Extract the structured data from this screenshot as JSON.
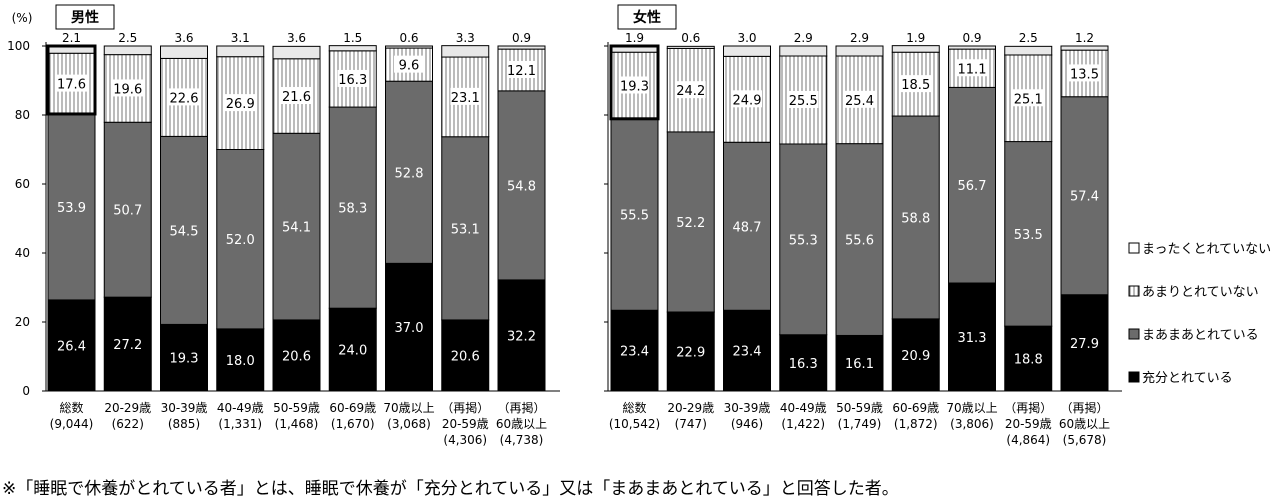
{
  "chart_data": [
    {
      "type": "bar",
      "stacked": true,
      "title": "男性",
      "ylabel": "(%)",
      "ylim": [
        0,
        100
      ],
      "yticks": [
        "0",
        "20",
        "40",
        "60",
        "80",
        "100"
      ],
      "categories": [
        "総数",
        "20-29歳",
        "30-39歳",
        "40-49歳",
        "50-59歳",
        "60-69歳",
        "70歳以上",
        "（再掲）20-59歳",
        "（再掲）60歳以上"
      ],
      "sample_sizes": [
        "(9,044)",
        "(622)",
        "(885)",
        "(1,331)",
        "(1,468)",
        "(1,670)",
        "(3,068)",
        "(4,306)",
        "(4,738)"
      ],
      "series": [
        {
          "name": "充分とれている",
          "values": [
            26.4,
            27.2,
            19.3,
            18.0,
            20.6,
            24.0,
            37.0,
            20.6,
            32.2
          ],
          "labels": [
            "26.4",
            "27.2",
            "19.3",
            "18.0",
            "20.6",
            "24.0",
            "37.0",
            "20.6",
            "32.2"
          ]
        },
        {
          "name": "まあまあとれている",
          "values": [
            53.9,
            50.7,
            54.5,
            52.0,
            54.1,
            58.3,
            52.8,
            53.1,
            54.8
          ],
          "labels": [
            "53.9",
            "50.7",
            "54.5",
            "52.0",
            "54.1",
            "58.3",
            "52.8",
            "53.1",
            "54.8"
          ]
        },
        {
          "name": "あまりとれていない",
          "values": [
            17.6,
            19.6,
            22.6,
            26.9,
            21.6,
            16.3,
            9.6,
            23.1,
            12.1
          ],
          "labels": [
            "17.6",
            "19.6",
            "22.6",
            "26.9",
            "21.6",
            "16.3",
            "9.6",
            "23.1",
            "12.1"
          ]
        },
        {
          "name": "まったくとれていない",
          "values": [
            2.1,
            2.5,
            3.6,
            3.1,
            3.6,
            1.5,
            0.6,
            3.3,
            0.9
          ],
          "labels": [
            "2.1",
            "2.5",
            "3.6",
            "3.1",
            "3.6",
            "1.5",
            "0.6",
            "3.3",
            "0.9"
          ]
        }
      ]
    },
    {
      "type": "bar",
      "stacked": true,
      "title": "女性",
      "ylim": [
        0,
        100
      ],
      "categories": [
        "総数",
        "20-29歳",
        "30-39歳",
        "40-49歳",
        "50-59歳",
        "60-69歳",
        "70歳以上",
        "（再掲）20-59歳",
        "（再掲）60歳以上"
      ],
      "sample_sizes": [
        "(10,542)",
        "(747)",
        "(946)",
        "(1,422)",
        "(1,749)",
        "(1,872)",
        "(3,806)",
        "(4,864)",
        "(5,678)"
      ],
      "series": [
        {
          "name": "充分とれている",
          "values": [
            23.4,
            22.9,
            23.4,
            16.3,
            16.1,
            20.9,
            31.3,
            18.8,
            27.9
          ],
          "labels": [
            "23.4",
            "22.9",
            "23.4",
            "16.3",
            "16.1",
            "20.9",
            "31.3",
            "18.8",
            "27.9"
          ]
        },
        {
          "name": "まあまあとれている",
          "values": [
            55.5,
            52.2,
            48.7,
            55.3,
            55.6,
            58.8,
            56.7,
            53.5,
            57.4
          ],
          "labels": [
            "55.5",
            "52.2",
            "48.7",
            "55.3",
            "55.6",
            "58.8",
            "56.7",
            "53.5",
            "57.4"
          ]
        },
        {
          "name": "あまりとれていない",
          "values": [
            19.3,
            24.2,
            24.9,
            25.5,
            25.4,
            18.5,
            11.1,
            25.1,
            13.5
          ],
          "labels": [
            "19.3",
            "24.2",
            "24.9",
            "25.5",
            "25.4",
            "18.5",
            "11.1",
            "25.1",
            "13.5"
          ]
        },
        {
          "name": "まったくとれていない",
          "values": [
            1.9,
            0.6,
            3.0,
            2.9,
            2.9,
            1.9,
            0.9,
            2.5,
            1.2
          ],
          "labels": [
            "1.9",
            "0.6",
            "3.0",
            "2.9",
            "2.9",
            "1.9",
            "0.9",
            "2.5",
            "1.2"
          ]
        }
      ]
    }
  ],
  "legend": [
    "まったくとれていない",
    "あまりとれていない",
    "まあまあとれている",
    "充分とれている"
  ],
  "colors": {
    "充分とれている": "#000000",
    "まあまあとれている": "#6b6b6b",
    "あまりとれていない": "#ffffff",
    "まったくとれていない": "#e8e8e8",
    "axis": "#000000"
  },
  "footnote": "※「睡眠で休養がとれている者」とは、睡眠で休養が「充分とれている」又は「まあまあとれている」と回答した者。"
}
